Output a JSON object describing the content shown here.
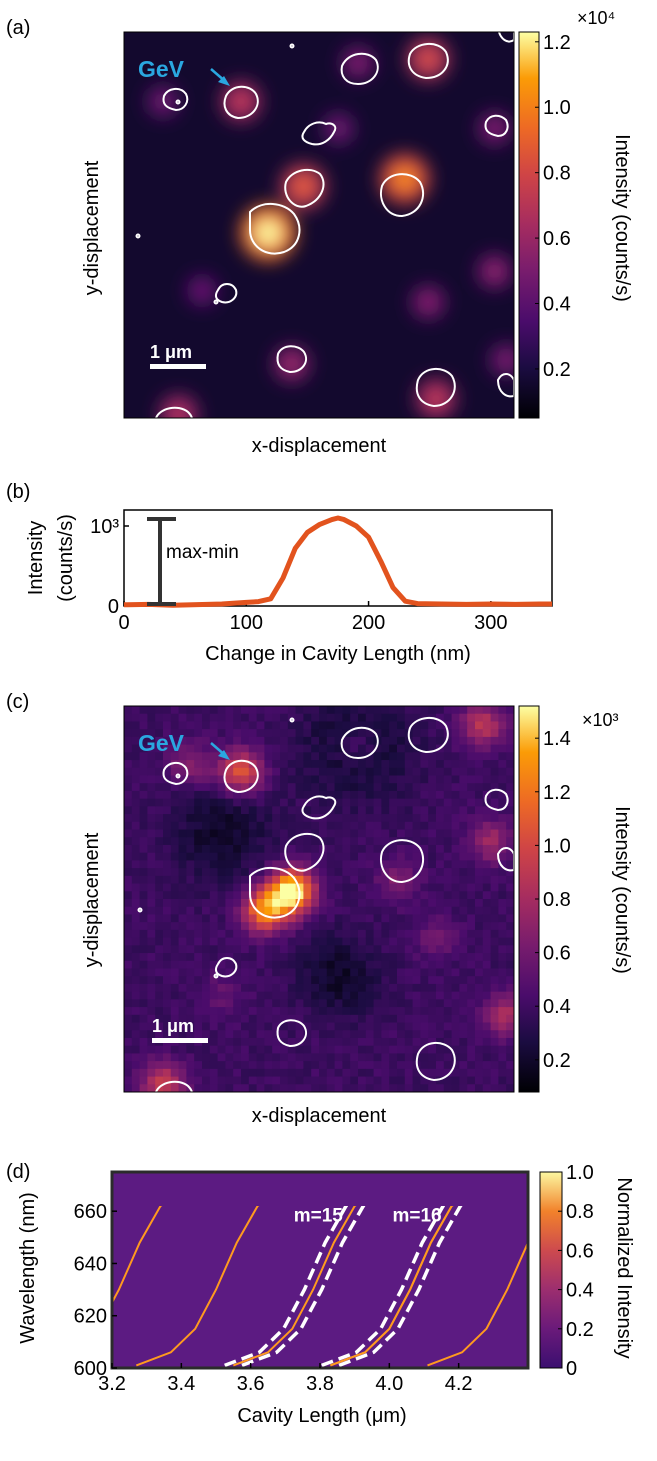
{
  "chart_data": [
    {
      "panel": "(a)",
      "type": "heatmap",
      "xlabel": "x-displacement",
      "ylabel": "y-displacement",
      "colorbar": {
        "label": "Intensity (counts/s)",
        "exponent_label": "×10⁴",
        "ticks": [
          "1.2",
          "1.0",
          "0.8",
          "0.6",
          "0.4",
          "0.2"
        ],
        "tick_values": [
          1.2,
          1.0,
          0.8,
          0.6,
          0.4,
          0.2
        ],
        "range": [
          0.05,
          1.23
        ]
      },
      "annotation": "GeV",
      "scalebar_label": "1 μm",
      "spots_norm": [
        {
          "x": 0.37,
          "y": 0.52,
          "v": 1.0
        },
        {
          "x": 0.46,
          "y": 0.4,
          "v": 0.62
        },
        {
          "x": 0.72,
          "y": 0.38,
          "v": 0.78
        },
        {
          "x": 0.3,
          "y": 0.18,
          "v": 0.45
        },
        {
          "x": 0.78,
          "y": 0.07,
          "v": 0.55
        },
        {
          "x": 0.6,
          "y": 0.08,
          "v": 0.2
        },
        {
          "x": 0.8,
          "y": 0.95,
          "v": 0.45
        },
        {
          "x": 0.43,
          "y": 0.86,
          "v": 0.3
        },
        {
          "x": 0.14,
          "y": 0.99,
          "v": 0.4
        },
        {
          "x": 0.1,
          "y": 0.18,
          "v": 0.15
        },
        {
          "x": 0.2,
          "y": 0.67,
          "v": 0.12
        },
        {
          "x": 0.95,
          "y": 0.25,
          "v": 0.2
        },
        {
          "x": 0.95,
          "y": 0.62,
          "v": 0.25
        },
        {
          "x": 0.78,
          "y": 0.7,
          "v": 0.22
        },
        {
          "x": 0.55,
          "y": 0.25,
          "v": 0.14
        },
        {
          "x": 0.98,
          "y": 0.85,
          "v": 0.18
        }
      ]
    },
    {
      "panel": "(b)",
      "type": "line",
      "xlabel": "Change in Cavity Length (nm)",
      "ylabel": "Intensity (counts/s)",
      "xlim": [
        0,
        350
      ],
      "ylim": [
        0,
        1200
      ],
      "xticks": [
        "0",
        "100",
        "200",
        "300"
      ],
      "xtick_values": [
        0,
        100,
        200,
        300
      ],
      "yticks": [
        "0",
        "10³"
      ],
      "ytick_values": [
        0,
        1000
      ],
      "annotation": "max-min",
      "series": [
        {
          "color": "#e2531e",
          "x": [
            0,
            20,
            40,
            60,
            80,
            100,
            110,
            120,
            130,
            140,
            150,
            160,
            170,
            175,
            180,
            190,
            200,
            210,
            220,
            230,
            240,
            260,
            280,
            300,
            320,
            340,
            350
          ],
          "y": [
            15,
            20,
            10,
            18,
            25,
            45,
            55,
            90,
            350,
            720,
            920,
            1020,
            1080,
            1100,
            1080,
            1000,
            860,
            560,
            230,
            60,
            30,
            25,
            20,
            25,
            20,
            25,
            25
          ]
        }
      ]
    },
    {
      "panel": "(c)",
      "type": "heatmap",
      "xlabel": "x-displacement",
      "ylabel": "y-displacement",
      "colorbar": {
        "label": "Intensity (counts/s)",
        "exponent_label": "×10³",
        "ticks": [
          "1.4",
          "1.2",
          "1.0",
          "0.8",
          "0.6",
          "0.4",
          "0.2"
        ],
        "tick_values": [
          1.4,
          1.2,
          1.0,
          0.8,
          0.6,
          0.4,
          0.2
        ],
        "range": [
          0.08,
          1.52
        ]
      },
      "annotation": "GeV",
      "scalebar_label": "1 μm",
      "spots_norm": [
        {
          "x": 0.43,
          "y": 0.48,
          "v": 1.0
        },
        {
          "x": 0.36,
          "y": 0.53,
          "v": 0.7
        },
        {
          "x": 0.3,
          "y": 0.17,
          "v": 0.55
        },
        {
          "x": 0.17,
          "y": 0.15,
          "v": 0.25
        },
        {
          "x": 0.1,
          "y": 0.98,
          "v": 0.45
        },
        {
          "x": 0.92,
          "y": 0.05,
          "v": 0.4
        },
        {
          "x": 0.94,
          "y": 0.35,
          "v": 0.3
        },
        {
          "x": 0.98,
          "y": 0.8,
          "v": 0.35
        },
        {
          "x": 0.7,
          "y": 0.45,
          "v": 0.2
        },
        {
          "x": 0.6,
          "y": 0.1,
          "v": 0.15
        },
        {
          "x": 0.8,
          "y": 0.6,
          "v": 0.15
        },
        {
          "x": 0.25,
          "y": 0.75,
          "v": 0.12
        }
      ],
      "dark_regions_norm": [
        {
          "x": 0.6,
          "y": 0.1,
          "r": 0.14
        },
        {
          "x": 0.25,
          "y": 0.33,
          "r": 0.12
        },
        {
          "x": 0.55,
          "y": 0.7,
          "r": 0.1
        }
      ]
    },
    {
      "panel": "(d)",
      "type": "heatmap",
      "xlabel": "Cavity Length (μm)",
      "ylabel": "Wavelength (nm)",
      "xlim": [
        3.2,
        4.4
      ],
      "ylim": [
        600,
        675
      ],
      "xticks": [
        "3.2",
        "3.4",
        "3.6",
        "3.8",
        "4.0",
        "4.2"
      ],
      "xtick_values": [
        3.2,
        3.4,
        3.6,
        3.8,
        4.0,
        4.2
      ],
      "yticks": [
        "660",
        "640",
        "620",
        "600"
      ],
      "ytick_values": [
        660,
        640,
        620,
        600
      ],
      "colorbar": {
        "label": "Normalized Intensity",
        "ticks": [
          "1.0",
          "0.8",
          "0.6",
          "0.4",
          "0.2",
          "0"
        ],
        "tick_values": [
          1.0,
          0.8,
          0.6,
          0.4,
          0.2,
          0.0
        ],
        "range": [
          0,
          1
        ]
      },
      "mode_labels": [
        {
          "text": "m=15",
          "x": 3.795,
          "y": 656
        },
        {
          "text": "m=16",
          "x": 4.08,
          "y": 656
        }
      ],
      "highlighted_curves": [
        {
          "name": "m=15",
          "x": [
            3.55,
            3.65,
            3.72,
            3.78,
            3.84,
            3.9,
            4.05
          ],
          "y": [
            601,
            606,
            615,
            630,
            648,
            662,
            675
          ]
        },
        {
          "name": "m=16",
          "x": [
            3.83,
            3.93,
            4.0,
            4.06,
            4.12,
            4.18,
            4.33
          ],
          "y": [
            601,
            606,
            615,
            630,
            648,
            662,
            675
          ]
        }
      ],
      "mode_offsets": [
        -0.56,
        -0.28,
        0.28,
        0.56
      ]
    }
  ]
}
